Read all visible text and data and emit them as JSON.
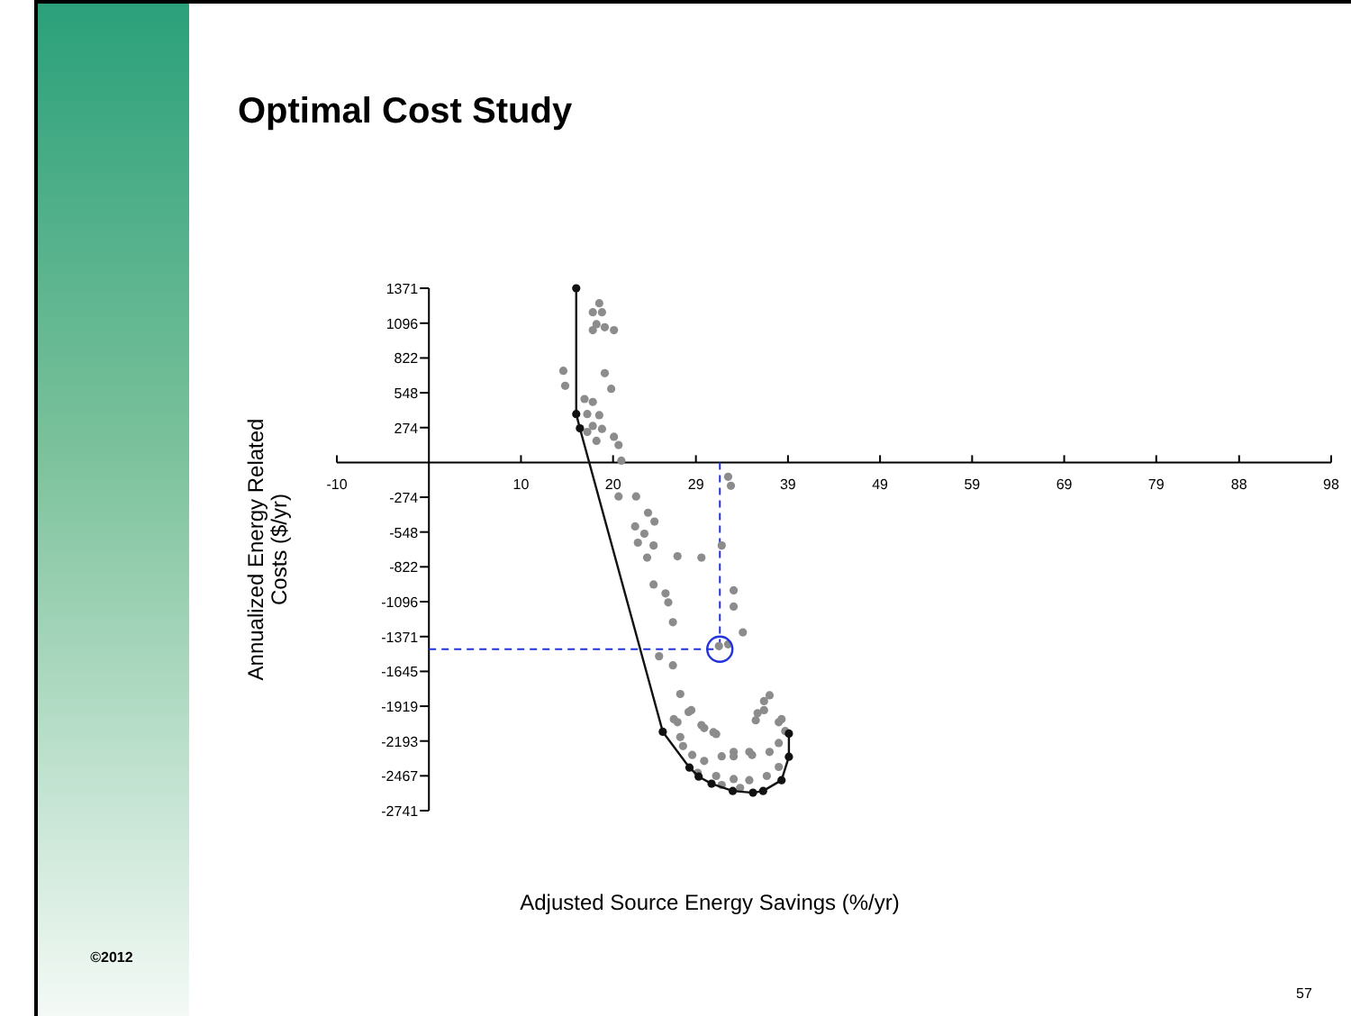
{
  "chart_data": {
    "type": "scatter",
    "title": "Optimal Cost Study",
    "xlabel": "Adjusted Source Energy Savings (%/yr)",
    "ylabel": "Annualized Energy Related Costs ($/yr)",
    "xlim": [
      -10,
      98
    ],
    "ylim": [
      -2741,
      1371
    ],
    "xticks": [
      -10,
      10,
      20,
      29,
      39,
      49,
      59,
      69,
      79,
      88,
      98
    ],
    "yticks": [
      -2741,
      -2467,
      -2193,
      -1919,
      -1645,
      -1371,
      -1096,
      -822,
      -548,
      -274,
      274,
      548,
      822,
      1096,
      1371
    ],
    "grid": false,
    "marker": "circle",
    "series": [
      {
        "type": "scatter",
        "color": "#8c8c8c",
        "x": [
          18.5,
          17.8,
          18.8,
          18.2,
          19.1,
          20.1,
          17.8,
          14.6,
          14.8,
          19.1,
          19.8,
          16.9,
          17.8,
          17.2,
          18.5,
          17.8,
          18.8,
          17.2,
          18.2,
          20.1,
          20.6,
          20.9,
          32.5,
          32.8,
          20.6,
          22.5,
          23.8,
          24.5,
          22.4,
          23.4,
          22.7,
          24.4,
          23.7,
          27.0,
          29.6,
          31.8,
          24.4,
          25.7,
          26.0,
          33.1,
          33.1,
          26.5,
          34.1,
          31.5,
          32.5,
          25.0,
          26.5,
          27.3,
          36.4,
          37.0,
          35.7,
          26.6,
          28.2,
          29.9,
          31.2,
          27.3,
          38.3,
          33.1,
          34.8,
          28.5,
          27.0,
          29.6,
          30.9,
          27.6,
          28.6,
          29.9,
          31.8,
          33.1,
          35.1,
          37.0,
          38.0,
          38.7,
          36.4,
          35.5,
          38.0,
          29.2,
          31.2,
          33.1,
          34.8,
          36.7,
          38.0,
          31.8,
          33.8
        ],
        "values": [
          1253,
          1182,
          1182,
          1088,
          1064,
          1041,
          1041,
          721,
          603,
          702,
          579,
          499,
          476,
          381,
          372,
          287,
          264,
          240,
          170,
          202,
          137,
          14,
          -113,
          -184,
          -268,
          -268,
          -396,
          -466,
          -504,
          -561,
          -632,
          -654,
          -749,
          -739,
          -749,
          -654,
          -961,
          -1031,
          -1102,
          -1007,
          -1135,
          -1258,
          -1338,
          -1446,
          -1432,
          -1526,
          -1597,
          -1823,
          -1879,
          -1833,
          -1974,
          -2021,
          -1964,
          -2091,
          -2138,
          -2162,
          -2021,
          -2279,
          -2279,
          -1950,
          -2045,
          -2068,
          -2124,
          -2233,
          -2303,
          -2350,
          -2313,
          -2313,
          -2303,
          -2279,
          -2209,
          -2115,
          -1950,
          -2030,
          -2045,
          -2444,
          -2468,
          -2492,
          -2501,
          -2468,
          -2397,
          -2539,
          -2562
        ]
      },
      {
        "type": "line",
        "color": "#111111",
        "marker": "circle",
        "line_style": "solid",
        "x": [
          16.0,
          16.0,
          16.4,
          25.4,
          28.3,
          29.3,
          30.7,
          33.0,
          35.2,
          36.3,
          38.3,
          39.1,
          39.1
        ],
        "values": [
          1371,
          381,
          268,
          -2120,
          -2402,
          -2473,
          -2529,
          -2586,
          -2600,
          -2586,
          -2501,
          -2317,
          -2134
        ]
      }
    ],
    "ref_lines": [
      {
        "axis": "x",
        "value": 31.6,
        "color": "#2233dd",
        "line_style": "dashed"
      },
      {
        "axis": "y",
        "value": -1470,
        "color": "#2233dd",
        "line_style": "dashed"
      }
    ],
    "annotations": [
      "©2012",
      "57"
    ]
  }
}
